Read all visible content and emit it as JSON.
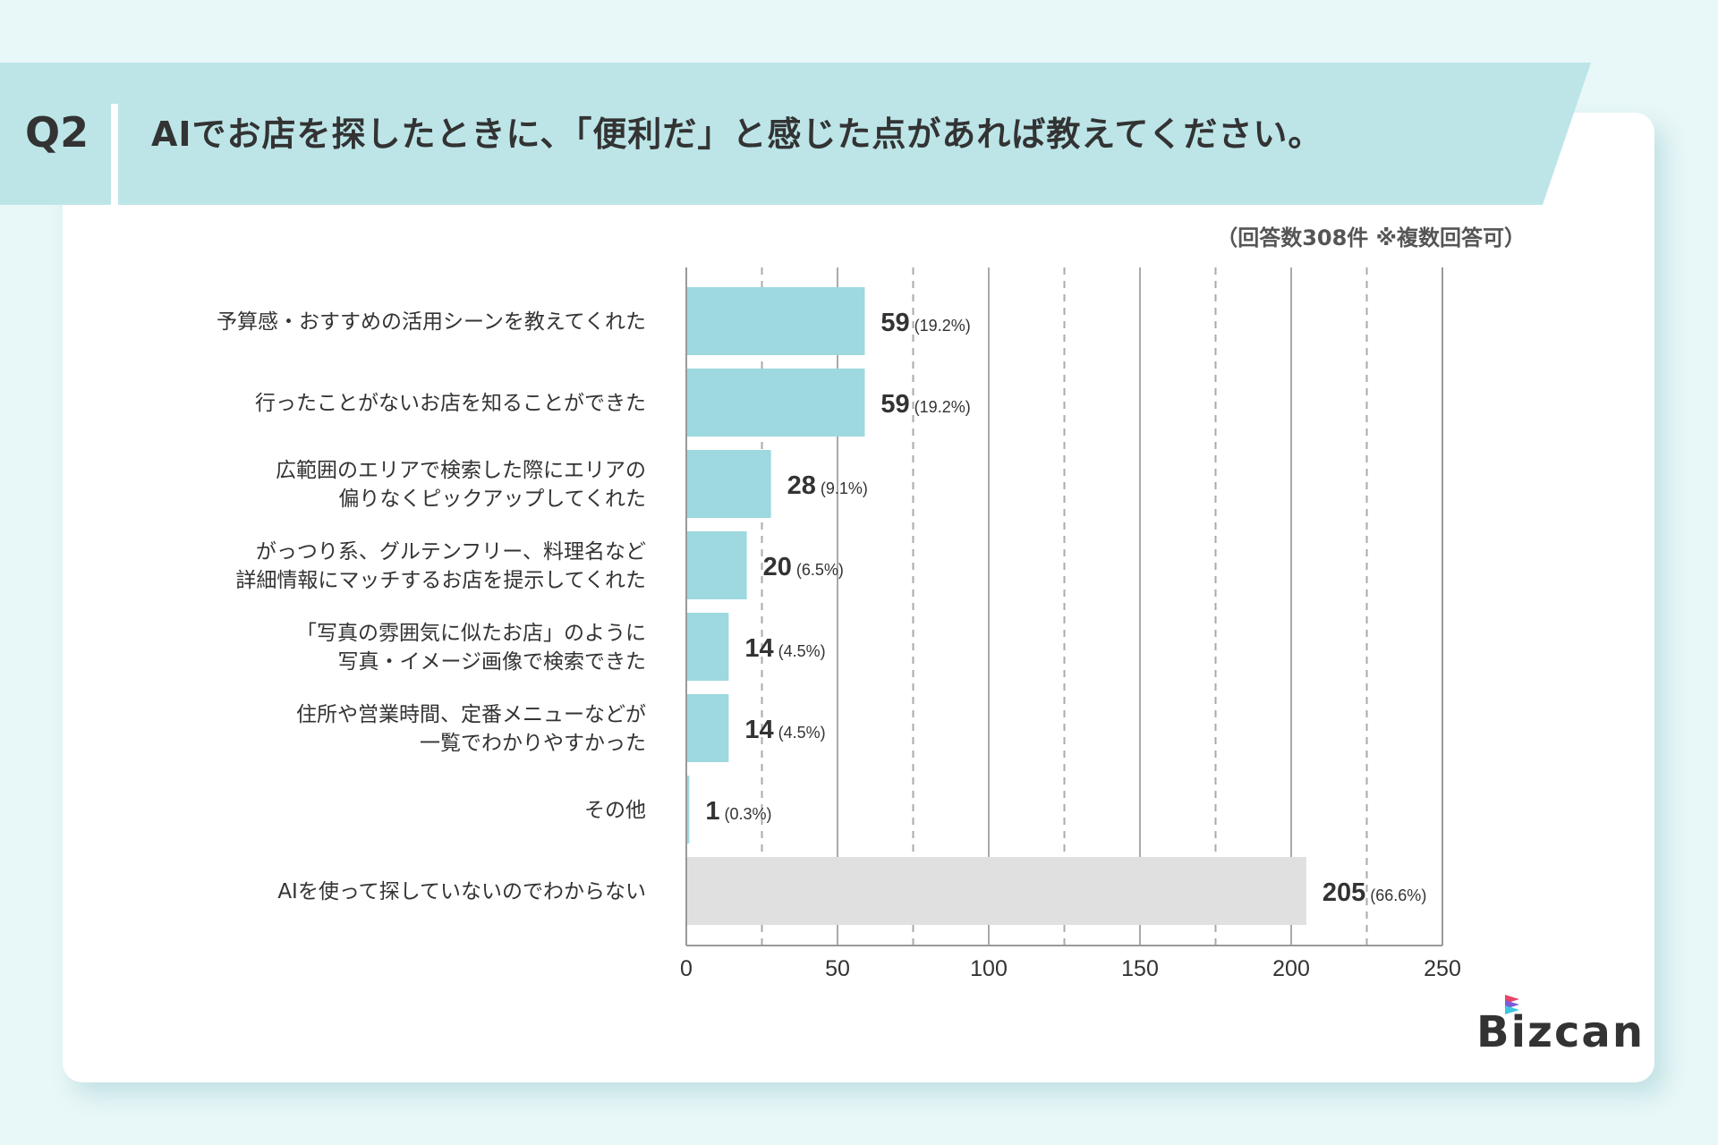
{
  "header": {
    "question_number": "Q2",
    "title": "AIでお店を探したときに、「便利だ」と感じた点があれば教えてください。",
    "note": "（回答数308件 ※複数回答可）"
  },
  "logo": {
    "text": "Bizcan"
  },
  "chart_data": {
    "type": "bar",
    "orientation": "horizontal",
    "categories": [
      [
        "予算感・おすすめの活用シーンを教えてくれた"
      ],
      [
        "行ったことがないお店を知ることができた"
      ],
      [
        "広範囲のエリアで検索した際にエリアの",
        "偏りなくピックアップしてくれた"
      ],
      [
        "がっつり系、グルテンフリー、料理名など",
        "詳細情報にマッチするお店を提示してくれた"
      ],
      [
        "「写真の雰囲気に似たお店」のように",
        "写真・イメージ画像で検索できた"
      ],
      [
        "住所や営業時間、定番メニューなどが",
        "一覧でわかりやすかった"
      ],
      [
        "その他"
      ],
      [
        "AIを使って探していないのでわからない"
      ]
    ],
    "values": [
      59,
      59,
      28,
      20,
      14,
      14,
      1,
      205
    ],
    "percent_labels": [
      "(19.2%)",
      "(19.2%)",
      "(9.1%)",
      "(6.5%)",
      "(4.5%)",
      "(4.5%)",
      "(0.3%)",
      "(66.6%)"
    ],
    "xlim": [
      0,
      250
    ],
    "xticks": [
      "0",
      "50",
      "100",
      "150",
      "200",
      "250"
    ],
    "grid": "vertical, solid every 50, dashed every 25",
    "colors": {
      "bar": "#9dd9de",
      "bar_last": "#e0e0e0",
      "grid": "#aaaaaa"
    }
  }
}
